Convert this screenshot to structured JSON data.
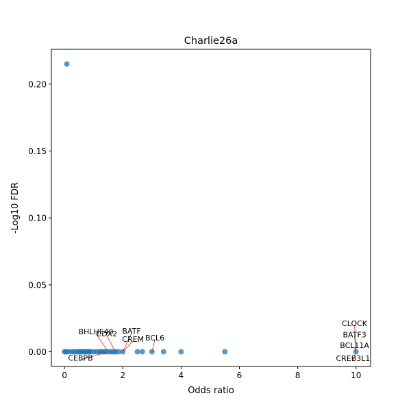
{
  "chart_data": {
    "type": "scatter",
    "title": "Charlie26a",
    "xlabel": "Odds ratio",
    "ylabel": "-Log10 FDR",
    "xlim": [
      -0.45,
      10.5
    ],
    "ylim": [
      -0.011,
      0.226
    ],
    "x_ticks": [
      0,
      2,
      4,
      6,
      8,
      10
    ],
    "x_tick_labels": [
      "0",
      "2",
      "4",
      "6",
      "8",
      "10"
    ],
    "y_ticks": [
      0.0,
      0.05,
      0.1,
      0.15,
      0.2
    ],
    "y_tick_labels": [
      "0.00",
      "0.05",
      "0.10",
      "0.15",
      "0.20"
    ],
    "grid": false,
    "point_color": "#1f77b4",
    "annotation_line_color": "#d62728",
    "points": [
      {
        "x": 0.08,
        "y": 0.215
      },
      {
        "x": 0.0,
        "y": 0.0
      },
      {
        "x": 0.05,
        "y": 0.0
      },
      {
        "x": 0.1,
        "y": 0.0
      },
      {
        "x": 0.2,
        "y": 0.0
      },
      {
        "x": 0.3,
        "y": 0.0
      },
      {
        "x": 0.35,
        "y": 0.0
      },
      {
        "x": 0.45,
        "y": 0.0
      },
      {
        "x": 0.5,
        "y": 0.0
      },
      {
        "x": 0.55,
        "y": 0.0
      },
      {
        "x": 0.6,
        "y": 0.0
      },
      {
        "x": 0.67,
        "y": 0.0
      },
      {
        "x": 0.7,
        "y": 0.0
      },
      {
        "x": 0.75,
        "y": 0.0
      },
      {
        "x": 0.8,
        "y": 0.0
      },
      {
        "x": 0.85,
        "y": 0.0
      },
      {
        "x": 0.9,
        "y": 0.0
      },
      {
        "x": 1.0,
        "y": 0.0
      },
      {
        "x": 1.1,
        "y": 0.0
      },
      {
        "x": 1.2,
        "y": 0.0
      },
      {
        "x": 1.25,
        "y": 0.0
      },
      {
        "x": 1.33,
        "y": 0.0
      },
      {
        "x": 1.4,
        "y": 0.0
      },
      {
        "x": 1.5,
        "y": 0.0
      },
      {
        "x": 1.6,
        "y": 0.0
      },
      {
        "x": 1.67,
        "y": 0.0
      },
      {
        "x": 1.75,
        "y": 0.0
      },
      {
        "x": 1.85,
        "y": 0.0
      },
      {
        "x": 2.0,
        "y": 0.0
      },
      {
        "x": 2.5,
        "y": 0.0
      },
      {
        "x": 2.67,
        "y": 0.0
      },
      {
        "x": 3.0,
        "y": 0.0
      },
      {
        "x": 3.4,
        "y": 0.0
      },
      {
        "x": 4.0,
        "y": 0.0
      },
      {
        "x": 5.5,
        "y": 0.0
      },
      {
        "x": 10.0,
        "y": 0.0
      }
    ],
    "annotations": [
      {
        "text": "BHLHE40",
        "point": [
          1.5,
          0.0
        ],
        "label_pos": [
          1.08,
          0.015
        ]
      },
      {
        "text": "BATF",
        "point": [
          2.0,
          0.0
        ],
        "label_pos": [
          2.3,
          0.0155
        ]
      },
      {
        "text": "CDX2",
        "point": [
          1.75,
          0.0
        ],
        "label_pos": [
          1.45,
          0.0135
        ]
      },
      {
        "text": "CREM",
        "point": [
          2.0,
          0.0
        ],
        "label_pos": [
          2.35,
          0.0095
        ]
      },
      {
        "text": "BCL6",
        "point": [
          3.0,
          0.0
        ],
        "label_pos": [
          3.1,
          0.0105
        ]
      },
      {
        "text": "CEBPB",
        "point": [
          1.5,
          0.0
        ],
        "label_pos": [
          0.55,
          -0.0045
        ]
      },
      {
        "text": "CLOCK",
        "point": [
          10.0,
          0.0
        ],
        "label_pos": [
          9.95,
          0.0213
        ]
      },
      {
        "text": "BATF3",
        "point": [
          10.0,
          0.0
        ],
        "label_pos": [
          9.95,
          0.0128
        ]
      },
      {
        "text": "BCL11A",
        "point": [
          10.0,
          0.0
        ],
        "label_pos": [
          9.95,
          0.0048
        ]
      },
      {
        "text": "CREB3L1",
        "point": [
          10.0,
          0.0
        ],
        "label_pos": [
          9.9,
          -0.0048
        ]
      }
    ]
  }
}
